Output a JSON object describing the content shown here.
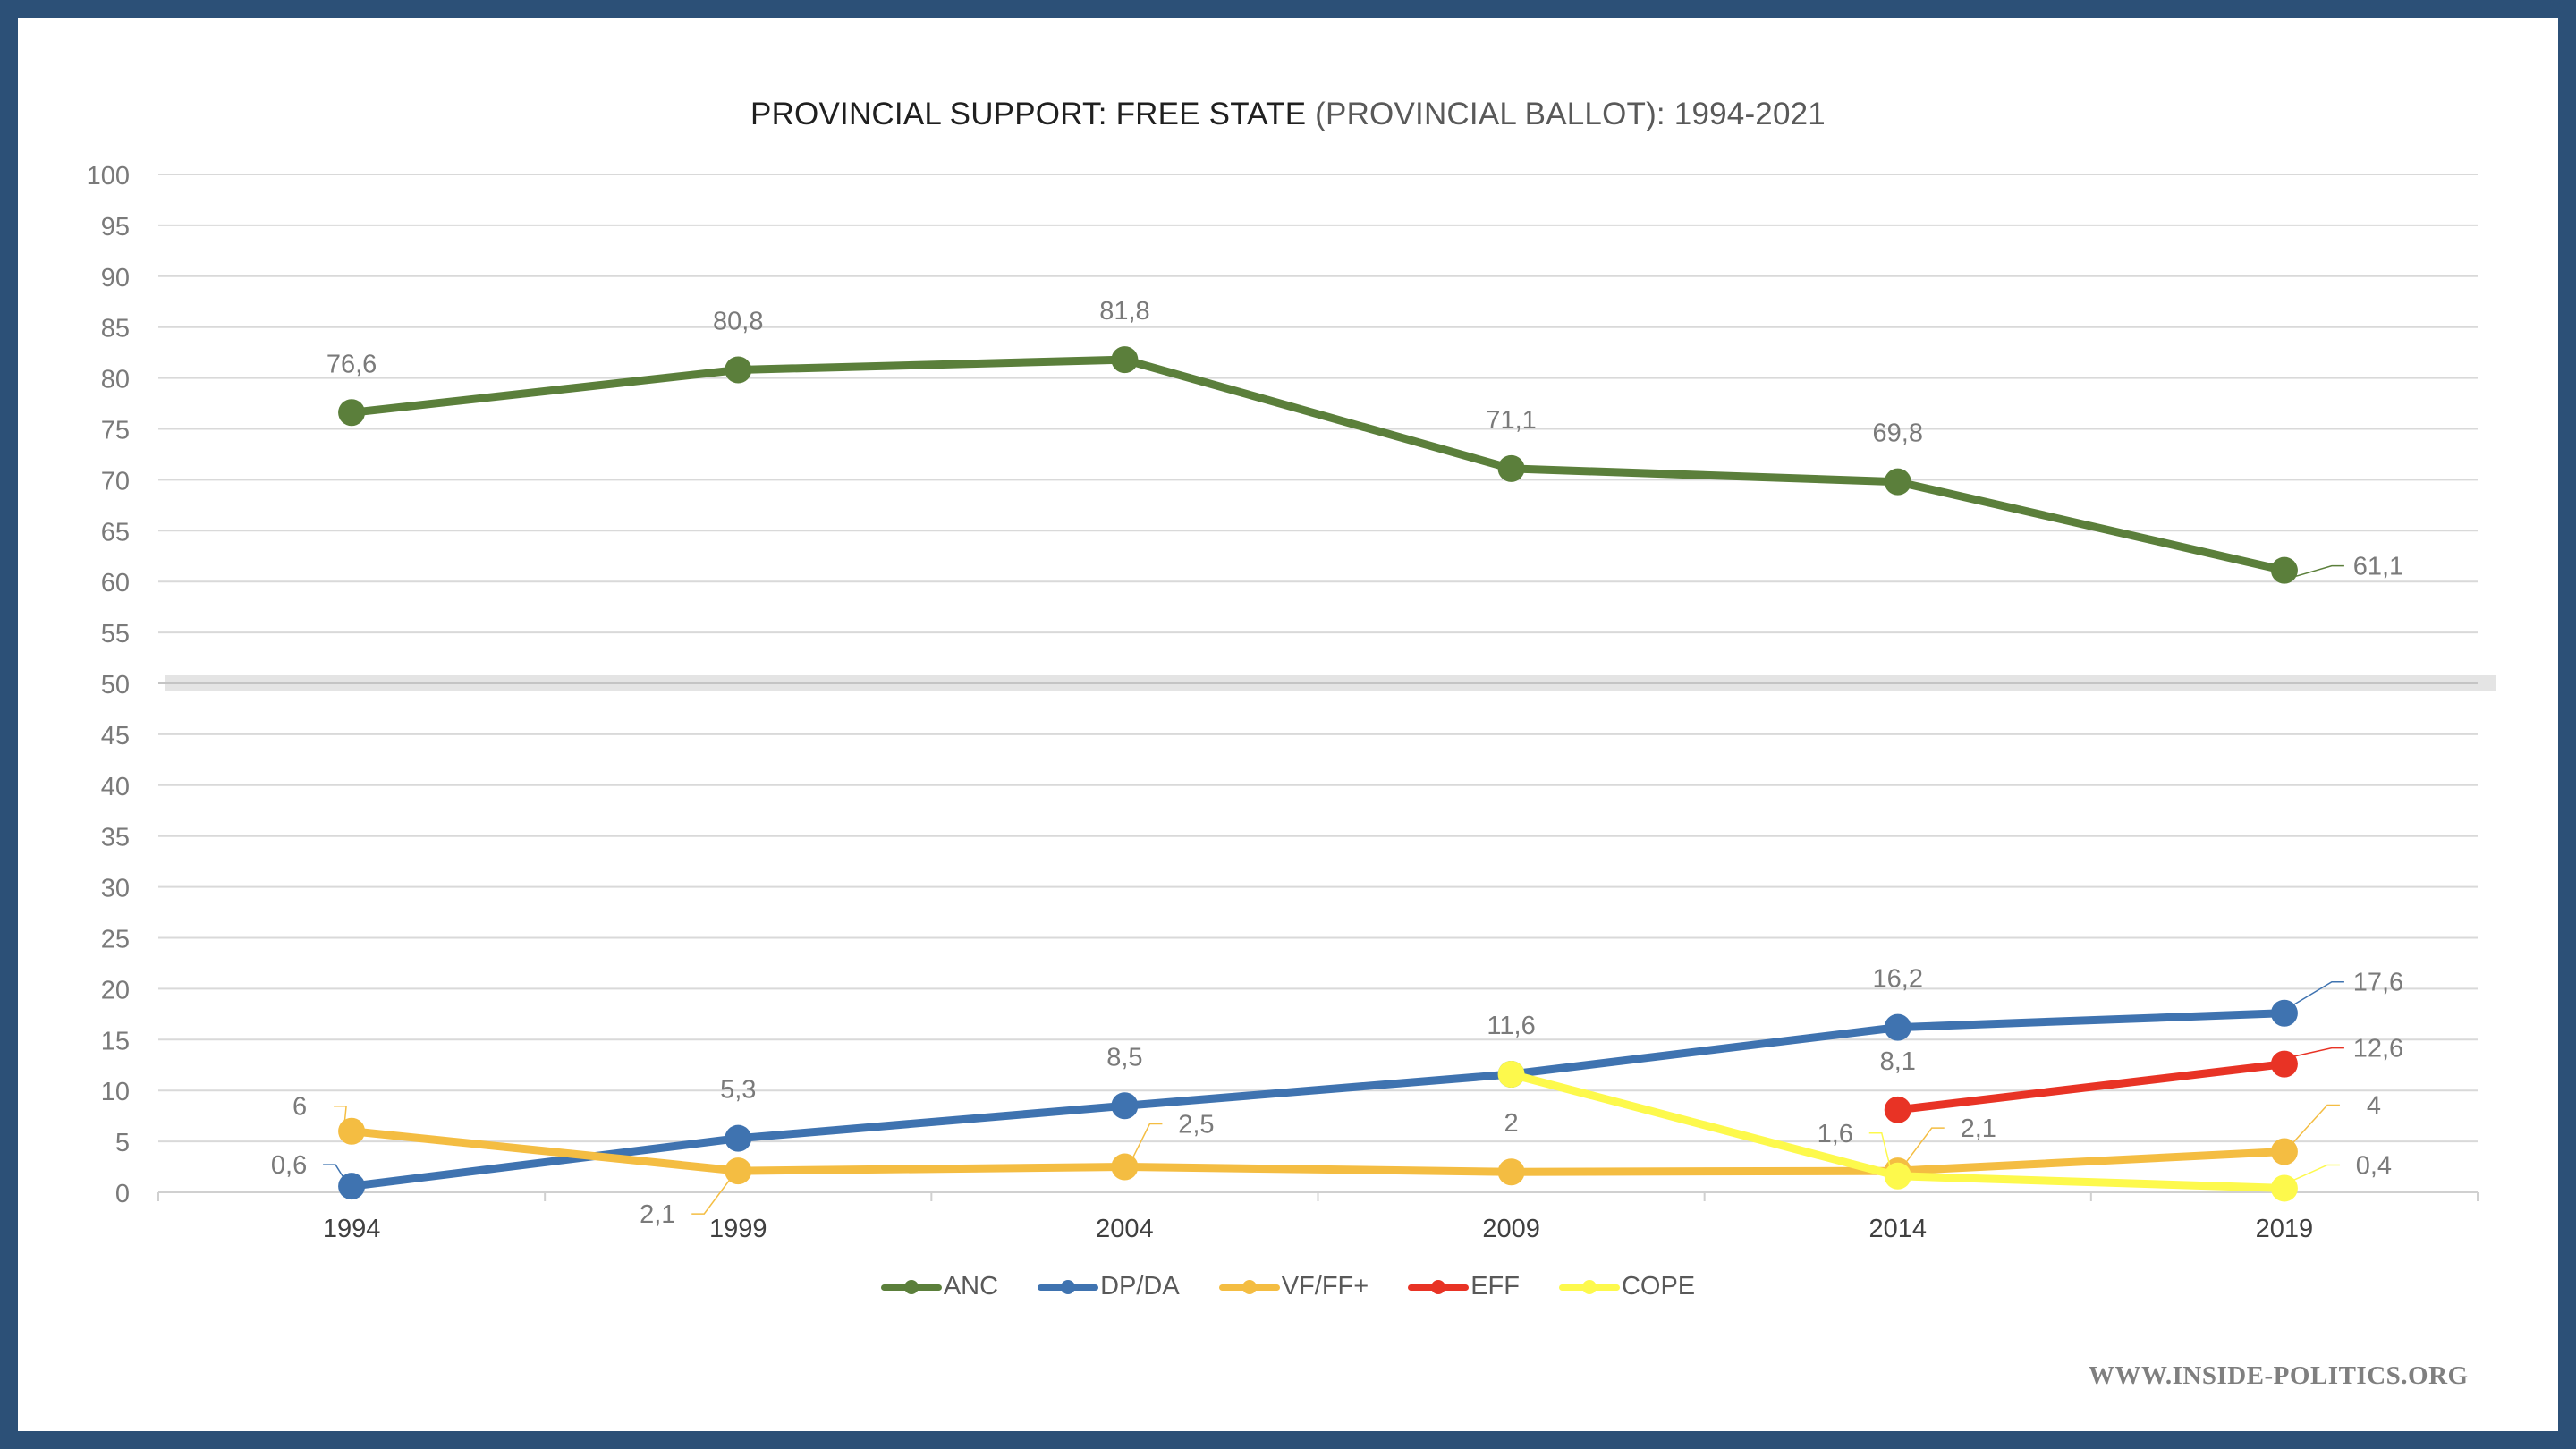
{
  "page": {
    "title_main": "PROVINCIAL SUPPORT: FREE STATE",
    "title_sub": " (PROVINCIAL BALLOT): 1994-2021",
    "watermark": "WWW.INSIDE-POLITICS.ORG",
    "frame_color": "#2c5077"
  },
  "chart_data": {
    "type": "line",
    "title": "PROVINCIAL SUPPORT: FREE STATE (PROVINCIAL BALLOT): 1994-2021",
    "xlabel": "",
    "ylabel": "",
    "categories": [
      "1994",
      "1999",
      "2004",
      "2009",
      "2014",
      "2019"
    ],
    "ylim": [
      0,
      100
    ],
    "yticks": [
      0,
      5,
      10,
      15,
      20,
      25,
      30,
      35,
      40,
      45,
      50,
      55,
      60,
      65,
      70,
      75,
      80,
      85,
      90,
      95,
      100
    ],
    "grid": true,
    "highlight_band": 50,
    "legend_position": "bottom",
    "series": [
      {
        "name": "ANC",
        "color": "#5b7f3b",
        "values": [
          76.6,
          80.8,
          81.8,
          71.1,
          69.8,
          61.1
        ],
        "labels": [
          "76,6",
          "80,8",
          "81,8",
          "71,1",
          "69,8",
          "61,1"
        ]
      },
      {
        "name": "DP/DA",
        "color": "#3f73b0",
        "values": [
          0.6,
          5.3,
          8.5,
          11.6,
          16.2,
          17.6
        ],
        "labels": [
          "0,6",
          "5,3",
          "8,5",
          "11,6",
          "16,2",
          "17,6"
        ]
      },
      {
        "name": "VF/FF+",
        "color": "#f4bd42",
        "values": [
          6,
          2.1,
          2.5,
          2,
          2.1,
          4
        ],
        "labels": [
          "6",
          "2,1",
          "2,5",
          "2",
          "2,1",
          "4"
        ]
      },
      {
        "name": "EFF",
        "color": "#e83325",
        "values": [
          null,
          null,
          null,
          null,
          8.1,
          12.6
        ],
        "labels": [
          null,
          null,
          null,
          null,
          "8,1",
          "12,6"
        ]
      },
      {
        "name": "COPE",
        "color": "#fdf94c",
        "values": [
          null,
          null,
          null,
          11.6,
          1.6,
          0.4
        ],
        "labels": [
          null,
          null,
          null,
          null,
          "1,6",
          "0,4"
        ]
      }
    ]
  }
}
